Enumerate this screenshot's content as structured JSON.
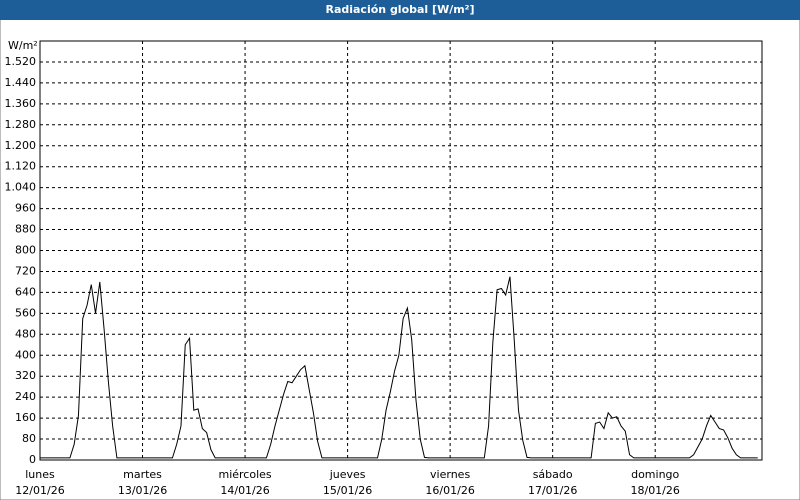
{
  "chart_data": {
    "type": "line",
    "title": "Radiación global [W/m²]",
    "y_unit": "W/m²",
    "xlim": [
      0,
      169
    ],
    "ylim": [
      0,
      1600
    ],
    "xticks": [
      0,
      24,
      48,
      72,
      96,
      120,
      144
    ],
    "xtick_days": [
      "lunes",
      "martes",
      "miércoles",
      "jueves",
      "viernes",
      "sábado",
      "domingo"
    ],
    "xtick_dates": [
      "12/01/26",
      "13/01/26",
      "14/01/26",
      "15/01/26",
      "16/01/26",
      "17/01/26",
      "18/01/26"
    ],
    "yticks": [
      0,
      80,
      160,
      240,
      320,
      400,
      480,
      560,
      640,
      720,
      800,
      880,
      960,
      {
        "value": 1040,
        "label": "1.040"
      },
      {
        "value": 1120,
        "label": "1.120"
      },
      {
        "value": 1200,
        "label": "1.200"
      },
      {
        "value": 1280,
        "label": "1.280"
      },
      {
        "value": 1360,
        "label": "1.360"
      },
      {
        "value": 1440,
        "label": "1.440"
      },
      {
        "value": 1520,
        "label": "1.520"
      }
    ],
    "grid": true,
    "color": "#000000",
    "x": [
      0,
      1,
      2,
      3,
      4,
      5,
      6,
      7,
      8,
      9,
      10,
      11,
      12,
      13,
      14,
      15,
      16,
      17,
      18,
      19,
      20,
      21,
      22,
      23,
      24,
      25,
      26,
      27,
      28,
      29,
      30,
      31,
      32,
      33,
      34,
      35,
      36,
      37,
      38,
      39,
      40,
      41,
      42,
      43,
      44,
      45,
      46,
      47,
      48,
      49,
      50,
      51,
      52,
      53,
      54,
      55,
      56,
      57,
      58,
      59,
      60,
      61,
      62,
      63,
      64,
      65,
      66,
      67,
      68,
      69,
      70,
      71,
      72,
      73,
      74,
      75,
      76,
      77,
      78,
      79,
      80,
      81,
      82,
      83,
      84,
      85,
      86,
      87,
      88,
      89,
      90,
      91,
      92,
      93,
      94,
      95,
      96,
      97,
      98,
      99,
      100,
      101,
      102,
      103,
      104,
      105,
      106,
      107,
      108,
      109,
      110,
      111,
      112,
      113,
      114,
      115,
      116,
      117,
      118,
      119,
      120,
      121,
      122,
      123,
      124,
      125,
      126,
      127,
      128,
      129,
      130,
      131,
      132,
      133,
      134,
      135,
      136,
      137,
      138,
      139,
      140,
      141,
      142,
      143,
      144,
      145,
      146,
      147,
      148,
      149,
      150,
      151,
      152,
      153,
      154,
      155,
      156,
      157,
      158,
      159,
      160,
      161,
      162,
      163,
      164,
      165,
      166,
      167,
      168
    ],
    "values": [
      8,
      8,
      8,
      8,
      8,
      8,
      8,
      8,
      60,
      170,
      540,
      590,
      670,
      560,
      680,
      500,
      300,
      130,
      8,
      8,
      8,
      8,
      8,
      8,
      8,
      8,
      8,
      8,
      8,
      8,
      8,
      8,
      60,
      130,
      440,
      465,
      190,
      195,
      120,
      105,
      40,
      8,
      8,
      8,
      8,
      8,
      8,
      8,
      8,
      8,
      8,
      8,
      8,
      8,
      60,
      130,
      190,
      250,
      300,
      295,
      320,
      345,
      360,
      270,
      180,
      70,
      8,
      8,
      8,
      8,
      8,
      8,
      8,
      8,
      8,
      8,
      8,
      8,
      8,
      8,
      80,
      190,
      260,
      340,
      400,
      540,
      580,
      460,
      230,
      80,
      10,
      8,
      8,
      8,
      8,
      8,
      8,
      8,
      8,
      8,
      8,
      8,
      8,
      8,
      8,
      130,
      450,
      650,
      655,
      630,
      700,
      460,
      190,
      75,
      10,
      8,
      8,
      8,
      8,
      8,
      8,
      8,
      8,
      8,
      8,
      8,
      8,
      8,
      8,
      8,
      140,
      145,
      120,
      180,
      160,
      165,
      130,
      110,
      20,
      8,
      8,
      8,
      8,
      8,
      8,
      8,
      8,
      8,
      8,
      8,
      8,
      8,
      8,
      20,
      50,
      80,
      130,
      170,
      145,
      120,
      115,
      85,
      45,
      20,
      8,
      8,
      8,
      8,
      8
    ]
  }
}
